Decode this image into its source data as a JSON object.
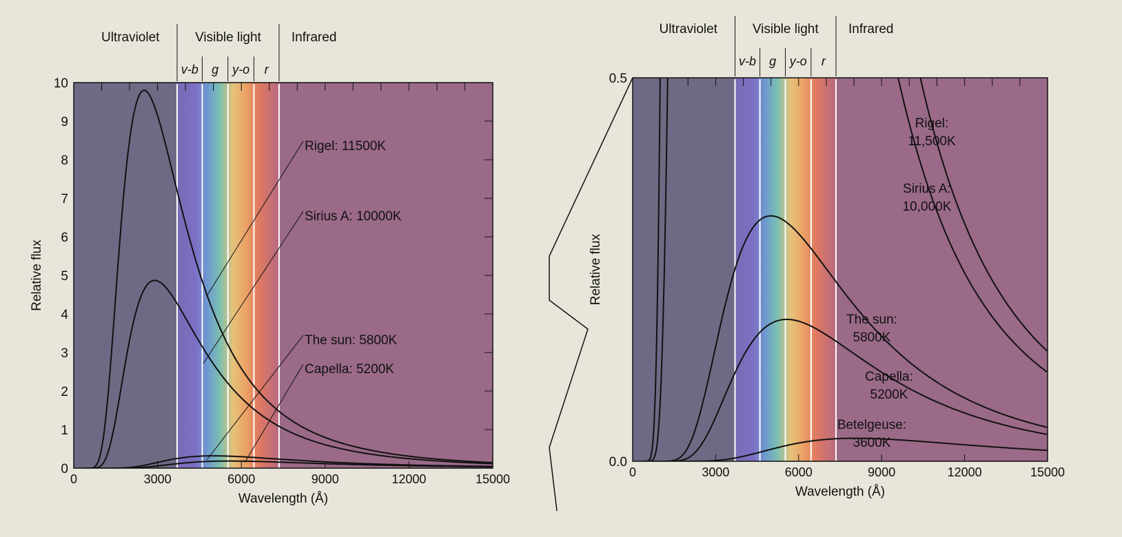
{
  "chart_data": [
    {
      "type": "line",
      "xlabel": "Wavelength (Å)",
      "ylabel": "Relative flux",
      "xlim": [
        0,
        15000
      ],
      "ylim": [
        0,
        10
      ],
      "xticks": [
        "0",
        "3000",
        "6000",
        "9000",
        "12000",
        "15000"
      ],
      "yticks": [
        "0",
        "1",
        "2",
        "3",
        "4",
        "5",
        "6",
        "7",
        "8",
        "9",
        "10"
      ],
      "regions": [
        "Ultraviolet",
        "Visible light",
        "Infrared"
      ],
      "bands": [
        "v-b",
        "g",
        "y-o",
        "r"
      ],
      "series": [
        {
          "name": "Rigel: 11500K",
          "temperature_K": 11500,
          "peak_wavelength": 2520,
          "peak_flux": 9.8
        },
        {
          "name": "Sirius A: 10000K",
          "temperature_K": 10000,
          "peak_wavelength": 2900,
          "peak_flux": 4.87
        },
        {
          "name": "The sun: 5800K",
          "temperature_K": 5800,
          "peak_wavelength": 5000,
          "peak_flux": 0.32
        },
        {
          "name": "Capella: 5200K",
          "temperature_K": 5200,
          "peak_wavelength": 5570,
          "peak_flux": 0.185
        }
      ]
    },
    {
      "type": "line",
      "xlabel": "Wavelength (Å)",
      "ylabel": "Relative flux",
      "xlim": [
        0,
        15000
      ],
      "ylim": [
        0,
        0.5
      ],
      "xticks": [
        "0",
        "3000",
        "6000",
        "9000",
        "12000",
        "15000"
      ],
      "yticks": [
        "0.0",
        "0.5"
      ],
      "regions": [
        "Ultraviolet",
        "Visible light",
        "Infrared"
      ],
      "bands": [
        "v-b",
        "g",
        "y-o",
        "r"
      ],
      "series": [
        {
          "name": "Rigel:",
          "name2": "11,500K",
          "temperature_K": 11500,
          "peak_wavelength": 2520,
          "peak_flux": 9.8
        },
        {
          "name": "Sirius A:",
          "name2": "10,000K",
          "temperature_K": 10000,
          "peak_wavelength": 2900,
          "peak_flux": 4.87
        },
        {
          "name": "The sun:",
          "name2": "5800K",
          "temperature_K": 5800,
          "peak_wavelength": 5000,
          "peak_flux": 0.32
        },
        {
          "name": "Capella:",
          "name2": "5200K",
          "temperature_K": 5200,
          "peak_wavelength": 5570,
          "peak_flux": 0.185
        },
        {
          "name": "Betelgeuse:",
          "name2": "3600K",
          "temperature_K": 3600,
          "peak_wavelength": 8050,
          "peak_flux": 0.03
        }
      ]
    }
  ],
  "colors": {
    "ultraviolet": "#6e6a85",
    "infrared": "#9a6a88",
    "page": "#e8e6da"
  }
}
